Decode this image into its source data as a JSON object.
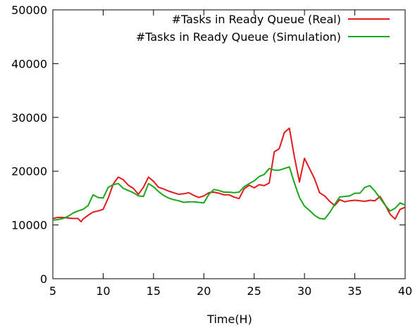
{
  "chart_data": {
    "type": "line",
    "title": "",
    "xlabel": "Time(H)",
    "ylabel": "",
    "xlim": [
      5,
      40
    ],
    "ylim": [
      0,
      50000
    ],
    "xticks": [
      5,
      10,
      15,
      20,
      25,
      30,
      35,
      40
    ],
    "yticks": [
      0,
      10000,
      20000,
      30000,
      40000,
      50000
    ],
    "grid": false,
    "legend_position": "top-right",
    "series": [
      {
        "name": "#Tasks in Ready Queue (Real)",
        "color": "#e31a1c",
        "x": [
          5,
          5.5,
          6,
          6.5,
          7,
          7.5,
          7.8,
          8,
          8.5,
          9,
          9.5,
          10,
          10.5,
          11,
          11.5,
          12,
          12.5,
          13,
          13.5,
          14,
          14.5,
          15,
          15.5,
          16,
          16.5,
          17,
          17.5,
          18,
          18.5,
          19,
          19.5,
          20,
          20.5,
          21,
          21.5,
          22,
          22.5,
          23,
          23.5,
          24,
          24.5,
          25,
          25.5,
          26,
          26.5,
          27,
          27.5,
          28,
          28.5,
          29,
          29.5,
          30,
          30.5,
          31,
          31.5,
          32,
          32.5,
          33,
          33.5,
          34,
          34.5,
          35,
          35.5,
          36,
          36.5,
          37,
          37.5,
          38,
          38.5,
          39,
          39.5,
          40
        ],
        "y": [
          11200,
          11400,
          11400,
          11300,
          11200,
          11200,
          10600,
          11100,
          11800,
          12400,
          12600,
          12900,
          15000,
          17600,
          18900,
          18400,
          17400,
          16800,
          15700,
          17000,
          18900,
          18100,
          17000,
          16700,
          16300,
          16000,
          15700,
          15800,
          16000,
          15500,
          15100,
          15400,
          16000,
          16100,
          15900,
          15600,
          15600,
          15200,
          14900,
          16700,
          17400,
          16900,
          17500,
          17300,
          17800,
          23600,
          24200,
          27200,
          28000,
          22600,
          18000,
          22400,
          20500,
          18600,
          16000,
          15400,
          14400,
          13600,
          14700,
          14300,
          14500,
          14600,
          14500,
          14400,
          14600,
          14500,
          15300,
          13800,
          12000,
          11100,
          12900,
          13300
        ]
      },
      {
        "name": "#Tasks in Ready Queue (Simulation)",
        "color": "#1ba61b",
        "x": [
          5,
          5.5,
          6,
          6.5,
          7,
          7.5,
          8,
          8.5,
          9,
          9.5,
          10,
          10.5,
          11,
          11.5,
          12,
          12.5,
          13,
          13.5,
          14,
          14.5,
          15,
          15.5,
          16,
          16.5,
          17,
          17.5,
          18,
          18.5,
          19,
          19.5,
          20,
          20.5,
          21,
          21.5,
          22,
          22.5,
          23,
          23.5,
          24,
          24.5,
          25,
          25.5,
          26,
          26.5,
          27,
          27.5,
          28,
          28.5,
          29,
          29.5,
          30,
          30.5,
          31,
          31.5,
          32,
          32.5,
          33,
          33.5,
          34,
          34.5,
          35,
          35.5,
          36,
          36.5,
          37,
          37.5,
          38,
          38.5,
          39,
          39.5,
          40
        ],
        "y": [
          10900,
          11000,
          11200,
          11600,
          12200,
          12600,
          12900,
          13600,
          15600,
          15100,
          15000,
          17000,
          17500,
          17700,
          16800,
          16400,
          16000,
          15400,
          15300,
          17700,
          17100,
          16200,
          15500,
          15000,
          14700,
          14500,
          14200,
          14300,
          14300,
          14200,
          14100,
          15700,
          16600,
          16400,
          16100,
          16100,
          16000,
          16100,
          17100,
          17700,
          18200,
          19000,
          19400,
          20500,
          20200,
          20200,
          20500,
          20800,
          17800,
          15100,
          13500,
          12700,
          11800,
          11200,
          11100,
          12300,
          13800,
          15200,
          15300,
          15400,
          15900,
          15900,
          17000,
          17300,
          16300,
          15000,
          13700,
          12600,
          13100,
          14100,
          13700
        ]
      }
    ]
  }
}
